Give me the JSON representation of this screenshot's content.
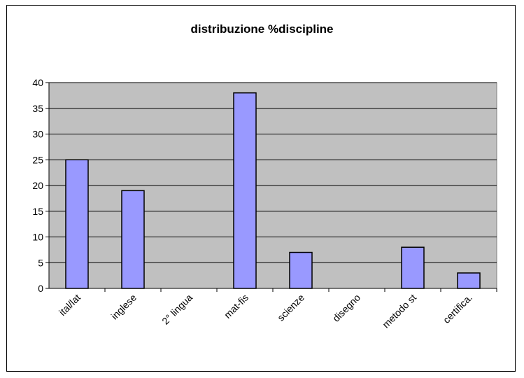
{
  "chart_data": {
    "type": "bar",
    "title": "distribuzione %discipline",
    "xlabel": "",
    "ylabel": "",
    "categories": [
      "ital/lat",
      "inglese",
      "2° lingua",
      "mat-fis",
      "scienze",
      "disegno",
      "metodo st",
      "certifica."
    ],
    "values": [
      25,
      19,
      0,
      38,
      7,
      0,
      8,
      3
    ],
    "ylim": [
      0,
      40
    ],
    "yticks": [
      0,
      5,
      10,
      15,
      20,
      25,
      30,
      35,
      40
    ],
    "grid": true,
    "legend": "none",
    "colors": {
      "bar_fill": "#9999ff",
      "bar_stroke": "#000000",
      "plot_background": "#c0c0c0"
    }
  }
}
